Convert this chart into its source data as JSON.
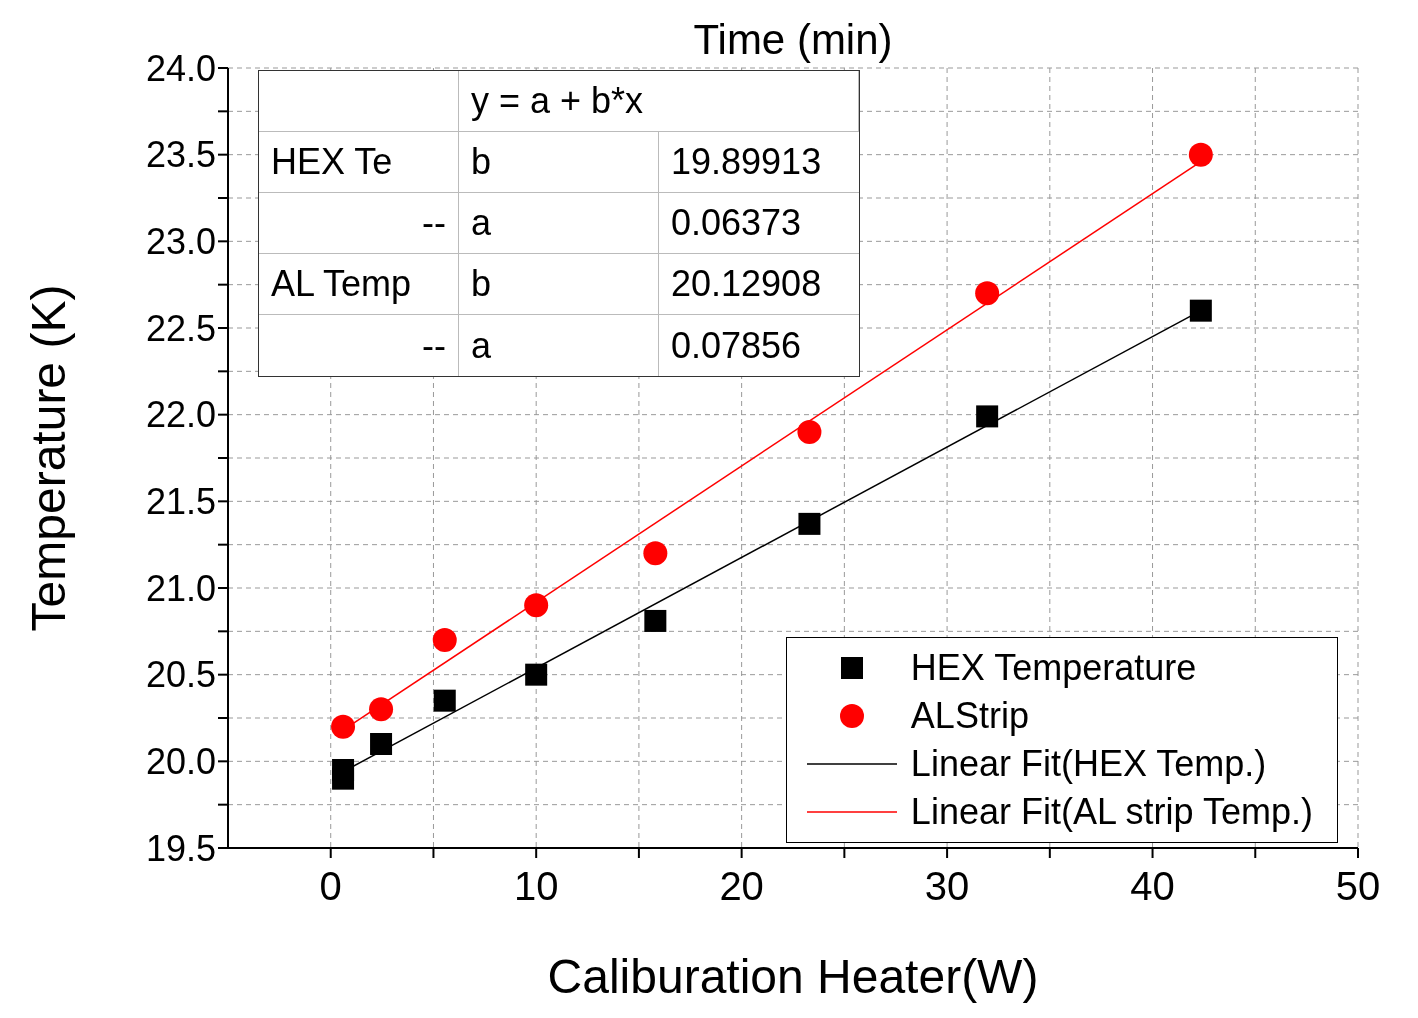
{
  "chart_data": {
    "type": "scatter",
    "xlabel": "Caliburation Heater(W)",
    "ylabel": "Temperature (K)",
    "annotations": [
      "Time (min)",
      "y = a + b*x",
      "HEX Te",
      "b",
      "19.89913",
      "--",
      "a",
      "0.06373",
      "AL Temp",
      "b",
      "20.12908",
      "--",
      "a",
      "0.07856"
    ],
    "series": [
      {
        "name": "HEX  Temperature",
        "marker": "square",
        "color": "#000000",
        "x": [
          0.6,
          0.6,
          2.45,
          5.55,
          10,
          15.8,
          23.3,
          31.95,
          42.35
        ],
        "values": [
          19.95,
          19.9,
          20.1,
          20.35,
          20.5,
          20.81,
          21.37,
          21.99,
          22.6
        ]
      },
      {
        "name": "ALStrip",
        "marker": "circle",
        "color": "#ff0000",
        "x": [
          0.6,
          2.45,
          5.55,
          10,
          15.8,
          23.3,
          31.95,
          42.35
        ],
        "values": [
          20.2,
          20.3,
          20.7,
          20.9,
          21.2,
          21.9,
          22.7,
          23.5
        ]
      },
      {
        "name": "Linear Fit(HEX Temp.)",
        "type": "line",
        "marker": "none",
        "color": "#000000",
        "x": [
          0.6,
          42.35
        ],
        "values": [
          19.94,
          22.6
        ]
      },
      {
        "name": "Linear Fit(AL strip Temp.)",
        "type": "line",
        "marker": "none",
        "color": "#ff0000",
        "x": [
          0.6,
          42.35
        ],
        "values": [
          20.18,
          23.46
        ]
      }
    ],
    "xlim": [
      -5,
      50
    ],
    "xticks": [
      0,
      {
        "value": 5,
        "label": null
      },
      10,
      {
        "value": 15,
        "label": null
      },
      20,
      {
        "value": 25,
        "label": null
      },
      30,
      {
        "value": 35,
        "label": null
      },
      40,
      {
        "value": 45,
        "label": null
      },
      50
    ],
    "ylim": [
      19.5,
      24
    ],
    "yticks": [
      19.5,
      {
        "value": 19.75,
        "label": null
      },
      {
        "value": 20,
        "label": "20.0"
      },
      {
        "value": 20.25,
        "label": null
      },
      20.5,
      {
        "value": 20.75,
        "label": null
      },
      {
        "value": 21,
        "label": "21.0"
      },
      {
        "value": 21.25,
        "label": null
      },
      21.5,
      {
        "value": 21.75,
        "label": null
      },
      {
        "value": 22,
        "label": "22.0"
      },
      {
        "value": 22.25,
        "label": null
      },
      22.5,
      {
        "value": 22.75,
        "label": null
      },
      {
        "value": 23,
        "label": "23.0"
      },
      {
        "value": 23.25,
        "label": null
      },
      23.5,
      {
        "value": 23.75,
        "label": null
      },
      {
        "value": 24,
        "label": "24.0"
      }
    ],
    "grid": true,
    "legend": "bottom right"
  }
}
